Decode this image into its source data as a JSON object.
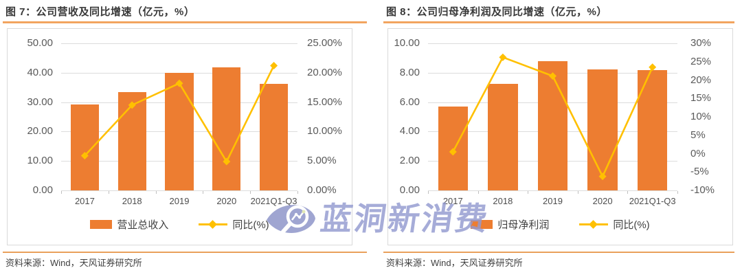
{
  "watermark": {
    "text": "蓝洞新消费",
    "logo": "eye-magnifier-chart-logo",
    "color": "#939AD0"
  },
  "colors": {
    "bar_orange": "#ED7D31",
    "line_gold": "#FFC000",
    "rule_orange": "#F2A45F",
    "gridline_gray": "#DCDCDC",
    "axis_label_gray": "#595959",
    "watermark_purple": "#939AD0"
  },
  "chart_data": [
    {
      "type": "bar+line",
      "title": "图 7：公司营收及同比增速（亿元，%）",
      "source_note": "资料来源：Wind，天风证券研究所",
      "categories": [
        "2017",
        "2018",
        "2019",
        "2020",
        "2021Q1-Q3"
      ],
      "series": [
        {
          "name": "营业总收入",
          "kind": "bar",
          "axis": "left",
          "color": "#ED7D31",
          "values": [
            29.3,
            33.5,
            39.9,
            41.8,
            36.3
          ]
        },
        {
          "name": "同比(%)",
          "kind": "line",
          "axis": "right",
          "color": "#FFC000",
          "values": [
            5.9,
            14.5,
            18.2,
            4.9,
            21.2
          ]
        }
      ],
      "left_axis": {
        "min": 0,
        "max": 50,
        "step": 10,
        "decimals": 2,
        "suffix": ""
      },
      "right_axis": {
        "min": 0,
        "max": 25,
        "step": 5,
        "decimals": 2,
        "suffix": "%"
      },
      "grid": true,
      "legend_position": "bottom"
    },
    {
      "type": "bar+line",
      "title": "图 8：公司归母净利润及同比增速（亿元，%）",
      "source_note": "资料来源：Wind，天风证券研究所",
      "categories": [
        "2017",
        "2018",
        "2019",
        "2020",
        "2021Q1-Q3"
      ],
      "series": [
        {
          "name": "归母净利润",
          "kind": "bar",
          "axis": "left",
          "color": "#ED7D31",
          "values": [
            5.7,
            7.25,
            8.78,
            8.22,
            8.17
          ]
        },
        {
          "name": "同比(%)",
          "kind": "line",
          "axis": "right",
          "color": "#FFC000",
          "values": [
            0.5,
            26.2,
            21.1,
            -6.2,
            23.5
          ]
        }
      ],
      "left_axis": {
        "min": 0,
        "max": 10,
        "step": 2,
        "decimals": 2,
        "suffix": ""
      },
      "right_axis": {
        "min": -10,
        "max": 30,
        "step": 5,
        "decimals": 0,
        "suffix": "%"
      },
      "grid": true,
      "legend_position": "bottom"
    }
  ]
}
